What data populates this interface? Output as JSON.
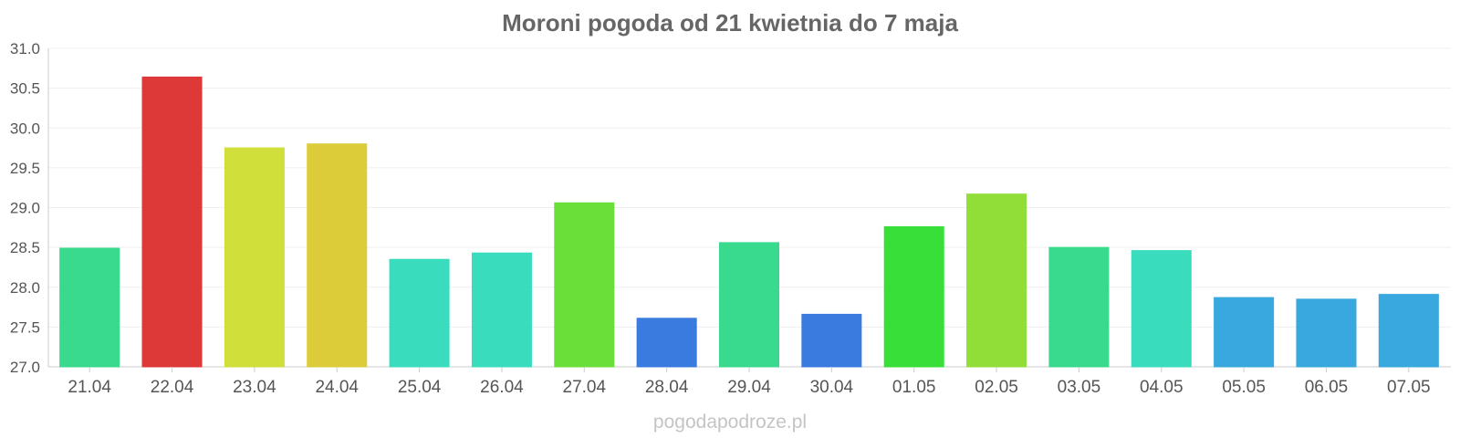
{
  "title": "Moroni pogoda od 21 kwietnia do 7 maja",
  "watermark": "pogodapodroze.pl",
  "chart_data": {
    "type": "bar",
    "title": "Moroni pogoda od 21 kwietnia do 7 maja",
    "xlabel": "",
    "ylabel": "",
    "ylim": [
      27.0,
      31.0
    ],
    "yticks": [
      "27.0",
      "27.5",
      "28.0",
      "28.5",
      "29.0",
      "29.5",
      "30.0",
      "30.5",
      "31.0"
    ],
    "grid": true,
    "categories": [
      "21.04",
      "22.04",
      "23.04",
      "24.04",
      "25.04",
      "26.04",
      "27.04",
      "28.04",
      "29.04",
      "30.04",
      "01.05",
      "02.05",
      "03.05",
      "04.05",
      "05.05",
      "06.05",
      "07.05"
    ],
    "values": [
      28.49,
      30.64,
      29.75,
      29.8,
      28.35,
      28.43,
      29.06,
      27.61,
      28.56,
      27.66,
      28.76,
      29.17,
      28.5,
      28.46,
      27.87,
      27.85,
      27.91
    ],
    "colors": [
      "#2fd987",
      "#dd2f2f",
      "#cede2f",
      "#dcca2f",
      "#2fdbb9",
      "#2fdbb9",
      "#63de2f",
      "#2f74dd",
      "#2fd987",
      "#2f74dd",
      "#2fde2f",
      "#8ddd2f",
      "#2fd987",
      "#2fdbb9",
      "#2fa4dd",
      "#2fa4dd",
      "#2fa4dd"
    ]
  }
}
